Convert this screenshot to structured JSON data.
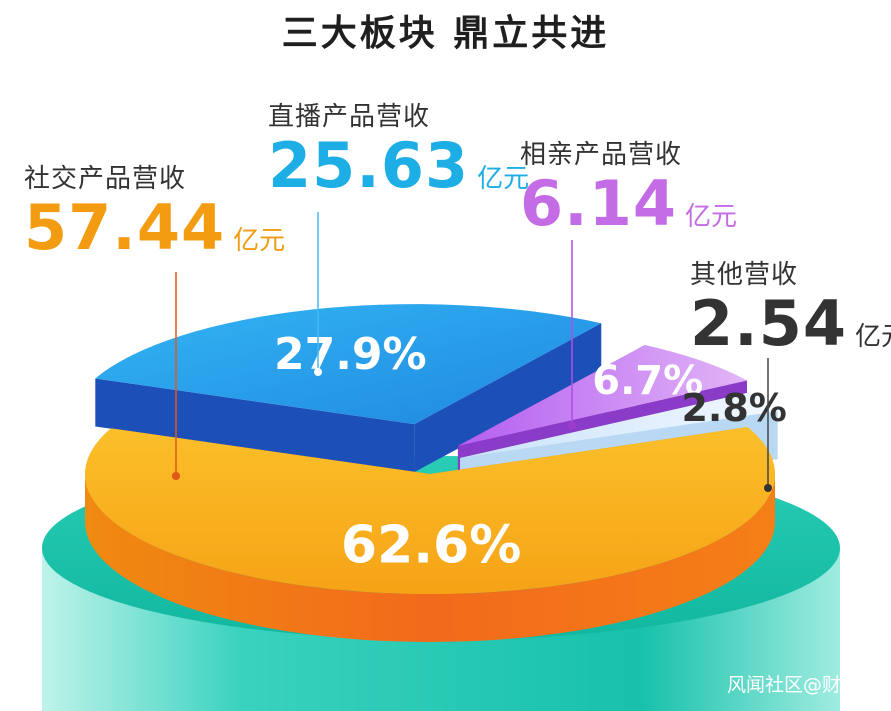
{
  "title": "三大板块 鼎立共进",
  "chart_data": {
    "type": "pie",
    "unit": "亿元",
    "slices": [
      {
        "label": "社交产品营收",
        "value": 57.44,
        "percent_label": "62.6%",
        "percent": 62.6,
        "color": "#f7a51c"
      },
      {
        "label": "直播产品营收",
        "value": 25.63,
        "percent_label": "27.9%",
        "percent": 27.9,
        "color": "#27a7ef"
      },
      {
        "label": "相亲产品营收",
        "value": 6.14,
        "percent_label": "6.7%",
        "percent": 6.7,
        "color": "#c56ff1"
      },
      {
        "label": "其他营收",
        "value": 2.54,
        "percent_label": "2.8%",
        "percent": 2.8,
        "color": "#dcecfa"
      }
    ]
  },
  "callouts": {
    "social": {
      "label": "社交产品营收",
      "value": "57.44",
      "unit": "亿元",
      "color": "#f39c12"
    },
    "live": {
      "label": "直播产品营收",
      "value": "25.63",
      "unit": "亿元",
      "color": "#1eaee6"
    },
    "dating": {
      "label": "相亲产品营收",
      "value": "6.14",
      "unit": "亿元",
      "color": "#c46be6"
    },
    "other": {
      "label": "其他营收",
      "value": "2.54",
      "unit": "亿元",
      "color": "#333333"
    }
  },
  "watermark": "风闻社区@财经玛"
}
